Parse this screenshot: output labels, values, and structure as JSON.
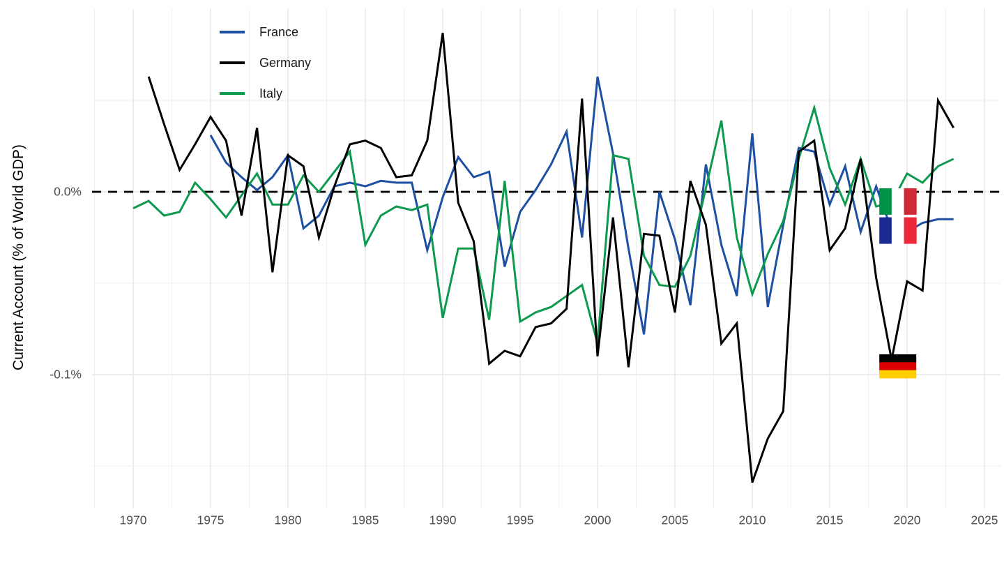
{
  "chart_data": {
    "type": "line",
    "title": "",
    "xlabel": "",
    "ylabel": "Current Account (% of World GDP)",
    "y_unit": "percent of world GDP",
    "xlim": [
      1967.4,
      2026.1
    ],
    "ylim": [
      -0.172,
      0.1
    ],
    "grid": "on",
    "legend_position": "top-left-inside",
    "zero_line": {
      "value": 0,
      "style": "dashed",
      "color": "#000000"
    },
    "x_ticks": [
      "1970",
      "1975",
      "1980",
      "1985",
      "1990",
      "1995",
      "2000",
      "2005",
      "2010",
      "2015",
      "2020",
      "2025"
    ],
    "x_tick_years": [
      1970,
      1975,
      1980,
      1985,
      1990,
      1995,
      2000,
      2005,
      2010,
      2015,
      2020,
      2025
    ],
    "y_ticks": [
      {
        "v": 0,
        "label": "0.0%"
      },
      {
        "v": -0.1,
        "label": "-0.1%"
      }
    ],
    "y_minor": [
      0.05,
      -0.05,
      -0.15
    ],
    "series": [
      {
        "name": "France",
        "color": "#1D50A2",
        "years": [
          1975,
          1976,
          1977,
          1978,
          1979,
          1980,
          1981,
          1982,
          1983,
          1984,
          1985,
          1986,
          1987,
          1988,
          1989,
          1990,
          1991,
          1992,
          1993,
          1994,
          1995,
          1996,
          1997,
          1998,
          1999,
          2000,
          2001,
          2002,
          2003,
          2004,
          2005,
          2006,
          2007,
          2008,
          2009,
          2010,
          2011,
          2012,
          2013,
          2014,
          2015,
          2016,
          2017,
          2018,
          2019,
          2020,
          2021,
          2022,
          2023
        ],
        "values": [
          0.031,
          0.016,
          0.008,
          0.001,
          0.008,
          0.02,
          -0.02,
          -0.013,
          0.003,
          0.005,
          0.003,
          0.006,
          0.005,
          0.005,
          -0.032,
          -0.003,
          0.019,
          0.008,
          0.011,
          -0.041,
          -0.011,
          0.001,
          0.015,
          0.033,
          -0.025,
          0.063,
          0.021,
          -0.031,
          -0.078,
          0.0,
          -0.026,
          -0.062,
          0.015,
          -0.029,
          -0.057,
          0.032,
          -0.063,
          -0.018,
          0.024,
          0.022,
          -0.007,
          0.014,
          -0.022,
          0.003,
          -0.021,
          -0.022,
          -0.017,
          -0.015,
          -0.015
        ]
      },
      {
        "name": "Germany",
        "color": "#000000",
        "years": [
          1971,
          1972,
          1973,
          1974,
          1975,
          1976,
          1977,
          1978,
          1979,
          1980,
          1981,
          1982,
          1983,
          1984,
          1985,
          1986,
          1987,
          1988,
          1989,
          1990,
          1991,
          1992,
          1993,
          1994,
          1995,
          1996,
          1997,
          1998,
          1999,
          2000,
          2001,
          2002,
          2003,
          2004,
          2005,
          2006,
          2007,
          2008,
          2009,
          2010,
          2011,
          2012,
          2013,
          2014,
          2015,
          2016,
          2017,
          2018,
          2019,
          2020,
          2021,
          2022,
          2023
        ],
        "values": [
          0.063,
          0.037,
          0.012,
          0.026,
          0.041,
          0.028,
          -0.013,
          0.035,
          -0.044,
          0.02,
          0.014,
          -0.025,
          0.003,
          0.026,
          0.028,
          0.024,
          0.008,
          0.009,
          0.028,
          0.087,
          -0.006,
          -0.027,
          -0.094,
          -0.087,
          -0.09,
          -0.074,
          -0.072,
          -0.064,
          0.051,
          -0.09,
          -0.014,
          -0.096,
          -0.023,
          -0.024,
          -0.066,
          0.006,
          -0.018,
          -0.083,
          -0.072,
          -0.159,
          -0.135,
          -0.12,
          0.022,
          0.028,
          -0.032,
          -0.02,
          0.018,
          -0.047,
          -0.092,
          -0.049,
          -0.054,
          0.05,
          0.035
        ]
      },
      {
        "name": "Italy",
        "color": "#0D9A4E",
        "years": [
          1970,
          1971,
          1972,
          1973,
          1974,
          1975,
          1976,
          1977,
          1978,
          1979,
          1980,
          1981,
          1982,
          1983,
          1984,
          1985,
          1986,
          1987,
          1988,
          1989,
          1990,
          1991,
          1992,
          1993,
          1994,
          1995,
          1996,
          1997,
          1998,
          1999,
          2000,
          2001,
          2002,
          2003,
          2004,
          2005,
          2006,
          2007,
          2008,
          2009,
          2010,
          2011,
          2012,
          2013,
          2014,
          2015,
          2016,
          2017,
          2018,
          2019,
          2020,
          2021,
          2022,
          2023
        ],
        "values": [
          -0.009,
          -0.005,
          -0.013,
          -0.011,
          0.005,
          -0.004,
          -0.014,
          -0.002,
          0.01,
          -0.007,
          -0.007,
          0.009,
          0.0,
          0.011,
          0.022,
          -0.029,
          -0.013,
          -0.008,
          -0.01,
          -0.007,
          -0.069,
          -0.031,
          -0.031,
          -0.07,
          0.006,
          -0.071,
          -0.066,
          -0.063,
          -0.057,
          -0.051,
          -0.083,
          0.02,
          0.018,
          -0.035,
          -0.051,
          -0.052,
          -0.035,
          0.002,
          0.039,
          -0.025,
          -0.056,
          -0.034,
          -0.016,
          0.018,
          0.046,
          0.013,
          -0.007,
          0.018,
          -0.008,
          -0.006,
          0.01,
          0.005,
          0.014,
          0.018
        ]
      }
    ],
    "flag_markers": [
      {
        "country": "Italy",
        "flag": "italy-flag",
        "year": 2019.4,
        "value": -0.0053,
        "orientation": "vertical",
        "colors": [
          "#009246",
          "#FFFFFF",
          "#CE2B37"
        ]
      },
      {
        "country": "France",
        "flag": "france-flag",
        "year": 2019.4,
        "value": -0.0212,
        "orientation": "vertical",
        "colors": [
          "#1A2C94",
          "#FFFFFF",
          "#ED2939"
        ]
      },
      {
        "country": "Germany",
        "flag": "germany-flag",
        "year": 2019.4,
        "value": -0.0954,
        "orientation": "horizontal",
        "colors": [
          "#000000",
          "#DD0000",
          "#FFCE00"
        ]
      }
    ]
  },
  "legend": {
    "items": [
      {
        "label": "France"
      },
      {
        "label": "Germany"
      },
      {
        "label": "Italy"
      }
    ]
  },
  "style": {
    "grid_major_color": "#E5E5E5",
    "grid_minor_color": "#EFEFEF",
    "tick_label_color": "#4d4d4d"
  }
}
